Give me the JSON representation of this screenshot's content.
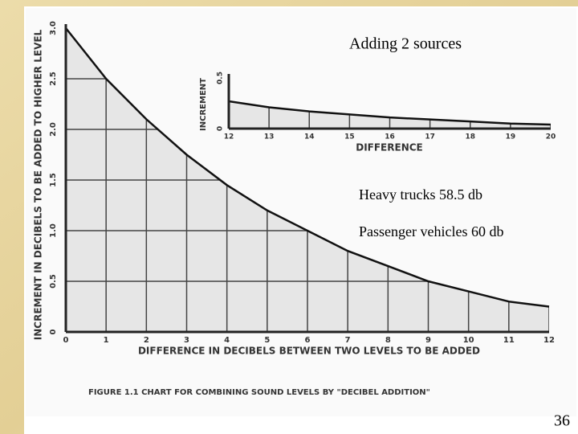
{
  "slide": {
    "heading": "Adding 2 sources",
    "notes": [
      "Heavy trucks 58.5 db",
      "Passenger vehicles 60 db"
    ],
    "page_number": "36"
  },
  "chart_data": [
    {
      "type": "line",
      "title": "FIGURE 1.1  CHART FOR COMBINING SOUND LEVELS BY \"DECIBEL ADDITION\"",
      "x_label": "DIFFERENCE  IN DECIBELS  BETWEEN  TWO  LEVELS  TO  BE  ADDED",
      "y_label": "INCREMENT  IN  DECIBELS  TO  BE  ADDED  TO  HIGHER  LEVEL",
      "x": [
        0,
        1,
        2,
        3,
        4,
        5,
        6,
        7,
        8,
        9,
        10,
        11,
        12
      ],
      "values": [
        3.0,
        2.5,
        2.1,
        1.75,
        1.45,
        1.2,
        1.0,
        0.8,
        0.65,
        0.5,
        0.4,
        0.3,
        0.25
      ],
      "color": "#111111",
      "xlim": [
        0,
        12
      ],
      "ylim": [
        0,
        3
      ],
      "xticks": [
        0,
        1,
        2,
        3,
        4,
        5,
        6,
        7,
        8,
        9,
        10,
        11,
        12
      ],
      "yticks": [
        0,
        0.5,
        {
          "value": 1,
          "label": "1.0"
        },
        1.5,
        {
          "value": 2,
          "label": "2.0"
        },
        2.5,
        {
          "value": 3,
          "label": "3.0"
        }
      ],
      "grid": true
    },
    {
      "type": "line",
      "x_label": "DIFFERENCE",
      "y_label": "INCREMENT",
      "x": [
        12,
        13,
        14,
        15,
        16,
        17,
        18,
        19,
        20
      ],
      "values": [
        0.27,
        0.21,
        0.17,
        0.14,
        0.11,
        0.09,
        0.07,
        0.05,
        0.04
      ],
      "color": "#111111",
      "xlim": [
        12,
        20
      ],
      "ylim": [
        0,
        0.5
      ],
      "xticks": [
        12,
        13,
        14,
        15,
        16,
        17,
        18,
        19,
        20
      ],
      "yticks": [
        0,
        0.5
      ],
      "grid": true
    }
  ]
}
